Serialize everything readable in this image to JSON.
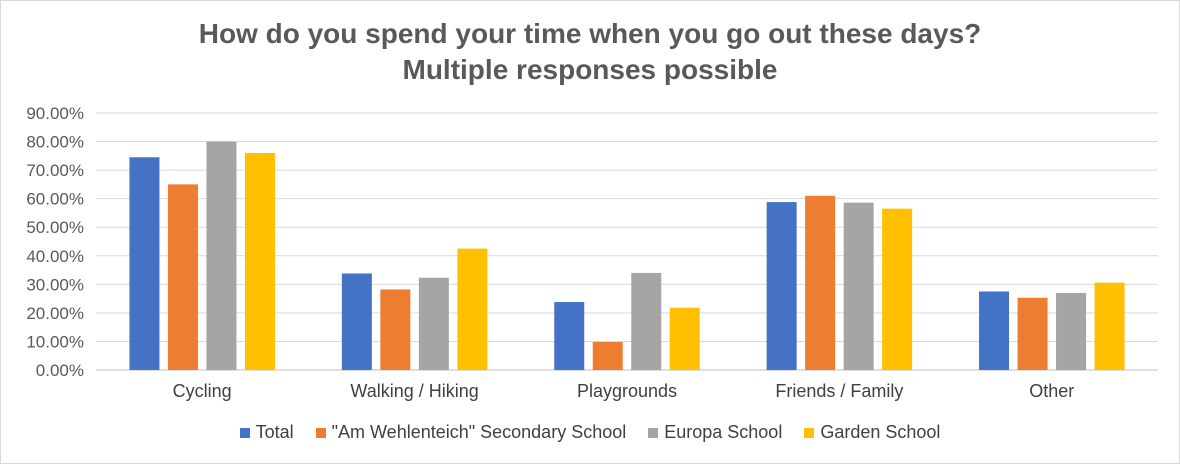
{
  "chart_data": {
    "type": "bar",
    "title": "How do you spend your time when you go out these days?",
    "subtitle": "Multiple responses possible",
    "categories": [
      "Cycling",
      "Walking / Hiking",
      "Playgrounds",
      "Friends / Family",
      "Other"
    ],
    "series": [
      {
        "name": "Total",
        "color": "#4472c4",
        "values": [
          74.5,
          33.8,
          23.8,
          58.8,
          27.5
        ]
      },
      {
        "name": "\"Am Wehlenteich\" Secondary School",
        "color": "#ed7d31",
        "values": [
          65.0,
          28.2,
          9.8,
          61.0,
          25.3
        ]
      },
      {
        "name": "Europa School",
        "color": "#a5a5a5",
        "values": [
          80.0,
          32.3,
          34.0,
          58.6,
          27.0
        ]
      },
      {
        "name": "Garden School",
        "color": "#ffc000",
        "values": [
          76.0,
          42.5,
          21.8,
          56.5,
          30.6
        ]
      }
    ],
    "ylim": [
      0,
      90
    ],
    "yticks": [
      "0.00%",
      "10.00%",
      "20.00%",
      "30.00%",
      "40.00%",
      "50.00%",
      "60.00%",
      "70.00%",
      "80.00%",
      "90.00%"
    ],
    "xlabel": "",
    "ylabel": "",
    "grid": true,
    "legend_position": "bottom"
  }
}
